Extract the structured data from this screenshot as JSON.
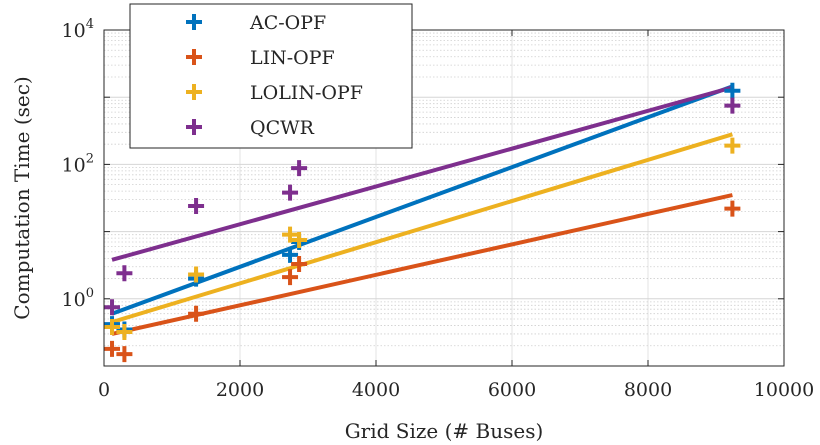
{
  "chart_data": {
    "type": "scatter",
    "xlabel": "Grid Size (# Buses)",
    "ylabel": "Computation Time (sec)",
    "xlim": [
      0,
      10000
    ],
    "ylim_exponents": [
      -1,
      4
    ],
    "yscale": "log",
    "grid": true,
    "legend_position": "top-left",
    "x_ticks": [
      0,
      2000,
      4000,
      6000,
      8000,
      10000
    ],
    "y_ticks": [
      {
        "base": "10",
        "exp": "0",
        "value": 1
      },
      {
        "base": "10",
        "exp": "2",
        "value": 100
      },
      {
        "base": "10",
        "exp": "4",
        "value": 10000
      }
    ],
    "series": [
      {
        "name": "AC-OPF",
        "color": "#0072BD",
        "points": [
          [
            118,
            0.42
          ],
          [
            300,
            0.35
          ],
          [
            1354,
            2.0
          ],
          [
            2736,
            4.5
          ],
          [
            2869,
            7.0
          ],
          [
            9241,
            1250
          ]
        ],
        "fit": [
          [
            118,
            0.6
          ],
          [
            9241,
            1450
          ]
        ]
      },
      {
        "name": "LIN-OPF",
        "color": "#D95319",
        "points": [
          [
            118,
            0.18
          ],
          [
            300,
            0.15
          ],
          [
            1354,
            0.6
          ],
          [
            2736,
            2.1
          ],
          [
            2869,
            3.3
          ],
          [
            9241,
            22
          ]
        ],
        "fit": [
          [
            118,
            0.3
          ],
          [
            9241,
            35
          ]
        ]
      },
      {
        "name": "LOLIN-OPF",
        "color": "#EDB120",
        "points": [
          [
            118,
            0.38
          ],
          [
            300,
            0.32
          ],
          [
            1354,
            2.3
          ],
          [
            2736,
            9.0
          ],
          [
            2869,
            7.5
          ],
          [
            9241,
            190
          ]
        ],
        "fit": [
          [
            118,
            0.45
          ],
          [
            9241,
            280
          ]
        ]
      },
      {
        "name": "QCWR",
        "color": "#7E2F8E",
        "points": [
          [
            118,
            0.75
          ],
          [
            300,
            2.4
          ],
          [
            1354,
            24
          ],
          [
            2736,
            38
          ],
          [
            2869,
            88
          ],
          [
            9241,
            750
          ]
        ],
        "fit": [
          [
            118,
            3.8
          ],
          [
            9241,
            1400
          ]
        ]
      }
    ]
  }
}
